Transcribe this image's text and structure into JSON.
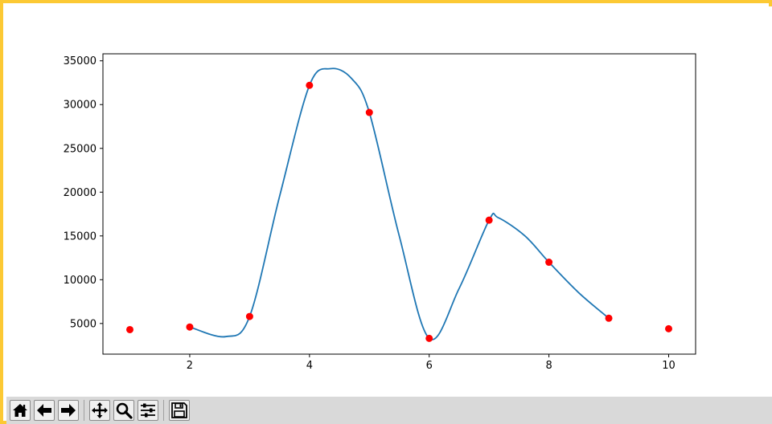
{
  "window": {
    "border_color": "#fcc934"
  },
  "toolbar": {
    "background": "#d9d9d9",
    "buttons": [
      {
        "icon": "home-icon"
      },
      {
        "icon": "back-arrow-icon"
      },
      {
        "icon": "forward-arrow-icon"
      },
      {
        "icon": "pan-move-icon"
      },
      {
        "icon": "zoom-magnifier-icon"
      },
      {
        "icon": "configure-subplots-icon"
      },
      {
        "icon": "save-floppy-icon"
      }
    ]
  },
  "chart_data": {
    "type": "line",
    "title": "",
    "xlabel": "",
    "ylabel": "",
    "xlim": [
      0.55,
      10.45
    ],
    "ylim": [
      1500,
      35800
    ],
    "xticks": [
      2,
      4,
      6,
      8,
      10
    ],
    "yticks": [
      5000,
      10000,
      15000,
      20000,
      25000,
      30000,
      35000
    ],
    "grid": false,
    "legend": "none",
    "series": [
      {
        "kind": "scatter",
        "color": "#ff0000",
        "x": [
          1,
          2,
          3,
          4,
          5,
          6,
          7,
          8,
          9,
          10
        ],
        "y": [
          4300,
          4600,
          5800,
          32200,
          29100,
          3300,
          16800,
          12000,
          5600,
          4400
        ]
      },
      {
        "kind": "line",
        "color": "#1f77b4",
        "x": [
          2,
          2.6,
          3,
          3.5,
          4,
          4.35,
          4.7,
          5,
          5.5,
          6,
          6.5,
          7,
          7.15,
          7.6,
          8,
          8.5,
          9
        ],
        "y": [
          4600,
          3500,
          5800,
          19500,
          32200,
          34100,
          33000,
          29100,
          15000,
          3300,
          9000,
          16800,
          17100,
          15000,
          12000,
          8500,
          5600
        ]
      }
    ]
  }
}
